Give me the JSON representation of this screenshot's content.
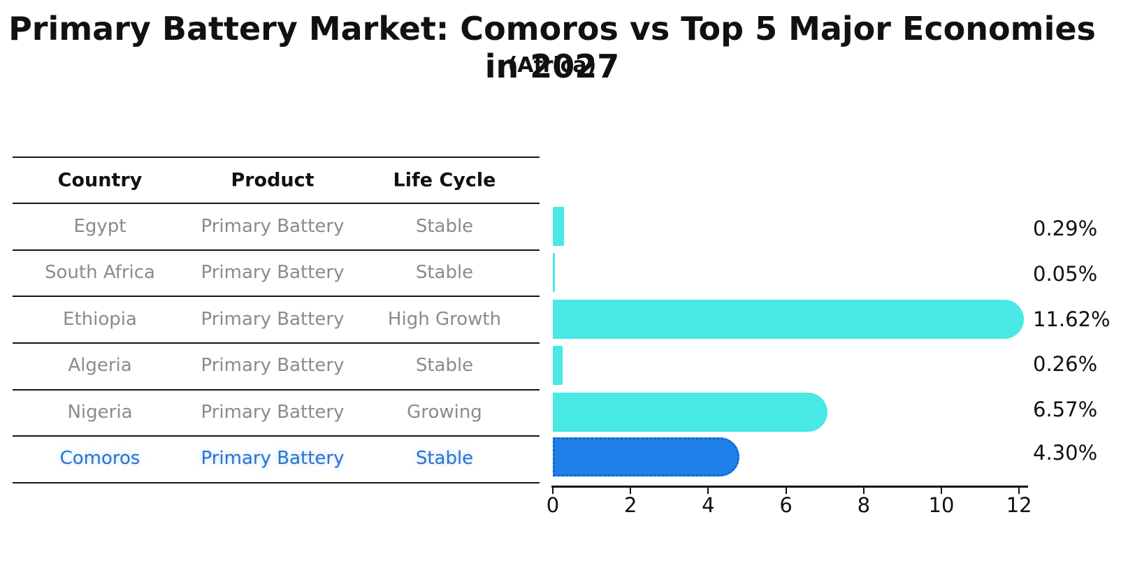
{
  "chart_data": {
    "type": "bar",
    "orientation": "horizontal",
    "title": "Primary Battery Market: Comoros vs Top 5 Major Economies in 2027",
    "subtitle": "(Africa)",
    "categories": [
      "Egypt",
      "South Africa",
      "Ethiopia",
      "Algeria",
      "Nigeria",
      "Comoros"
    ],
    "values": [
      0.29,
      0.05,
      11.62,
      0.26,
      6.57,
      4.3
    ],
    "value_labels": [
      "0.29%",
      "0.05%",
      "11.62%",
      "0.26%",
      "6.57%",
      "4.30%"
    ],
    "xlabel": "",
    "ylabel": "",
    "xlim": [
      0,
      12.2
    ],
    "xticks": [
      0,
      2,
      4,
      6,
      8,
      10,
      12
    ],
    "grid": false,
    "legend": false,
    "bar_color": "#48E8E4",
    "highlight_index": 5,
    "highlight_color": "#1E80E8",
    "highlight_edge_color": "#1565C8"
  },
  "table": {
    "headers": [
      "Country",
      "Product",
      "Life Cycle"
    ],
    "rows": [
      [
        "Egypt",
        "Primary Battery",
        "Stable"
      ],
      [
        "South Africa",
        "Primary Battery",
        "Stable"
      ],
      [
        "Ethiopia",
        "Primary Battery",
        "High Growth"
      ],
      [
        "Algeria",
        "Primary Battery",
        "Stable"
      ],
      [
        "Nigeria",
        "Primary Battery",
        "Growing"
      ],
      [
        "Comoros",
        "Primary Battery",
        "Stable"
      ]
    ],
    "highlight_row": "Comoros",
    "highlight_text_color": "#2E73C9"
  }
}
